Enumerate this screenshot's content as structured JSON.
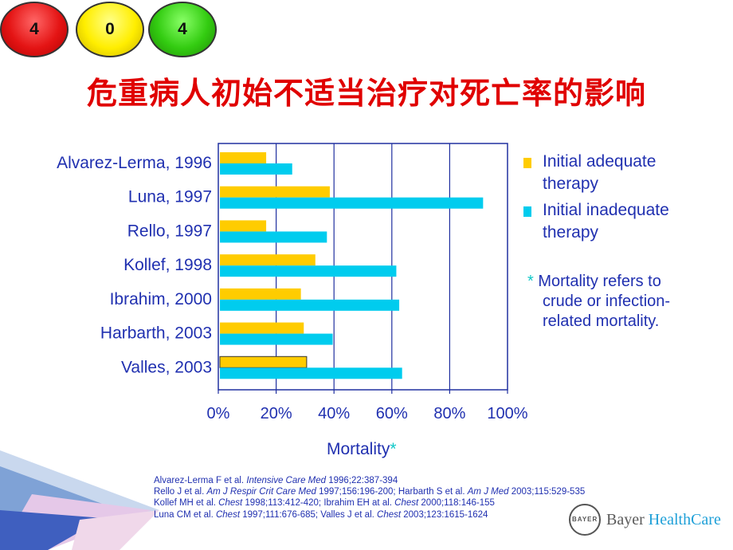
{
  "badges": [
    "4",
    "0",
    "4"
  ],
  "slide_title": "危重病人初始不适当治疗对死亡率的影响",
  "chart_data": {
    "type": "bar",
    "orientation": "horizontal",
    "categories": [
      "Alvarez-Lerma, 1996",
      "Luna, 1997",
      "Rello, 1997",
      "Kollef, 1998",
      "Ibrahim, 2000",
      "Harbarth, 2003",
      "Valles, 2003"
    ],
    "series": [
      {
        "name": "Initial adequate therapy",
        "color": "#ffcc00",
        "values": [
          16,
          38,
          16,
          33,
          28,
          29,
          30
        ]
      },
      {
        "name": "Initial inadequate therapy",
        "color": "#00ccee",
        "values": [
          25,
          91,
          37,
          61,
          62,
          39,
          63
        ]
      }
    ],
    "xlim": [
      0,
      100
    ],
    "xticks": [
      "0%",
      "20%",
      "40%",
      "60%",
      "80%",
      "100%"
    ],
    "xlabel": "Mortality",
    "xlabel_marker": "*",
    "grid": true,
    "legend_position": "right"
  },
  "legend": {
    "adequate_line1": "Initial adequate",
    "adequate_line2": "therapy",
    "inadequate_line1": "Initial inadequate",
    "inadequate_line2": "therapy"
  },
  "note": {
    "star": "*",
    "line1": "Mortality refers to",
    "line2": "crude or infection-",
    "line3": "related mortality."
  },
  "references": [
    {
      "a": "Alvarez-Lerma F et al. ",
      "j": "Intensive Care Med",
      "b": " 1996;22:387-394"
    },
    {
      "a": "Rello J et al. ",
      "j": "Am J Respir Crit Care Med",
      "b": " 1997;156:196-200; Harbarth S et al. ",
      "j2": "Am J Med",
      "c": " 2003;115:529-535"
    },
    {
      "a": "Kollef MH et al. ",
      "j": "Chest",
      "b": " 1998;113:412-420; Ibrahim EH at al. ",
      "j2": "Chest",
      "c": " 2000;118:146-155"
    },
    {
      "a": "Luna CM et al. ",
      "j": "Chest",
      "b": " 1997;111:676-685; Valles J et al. ",
      "j2": "Chest",
      "c": " 2003;123:1615-1624"
    }
  ],
  "brand": {
    "logo_text": "BAYER",
    "name_part1": "Bayer ",
    "name_part2": "HealthCare"
  }
}
